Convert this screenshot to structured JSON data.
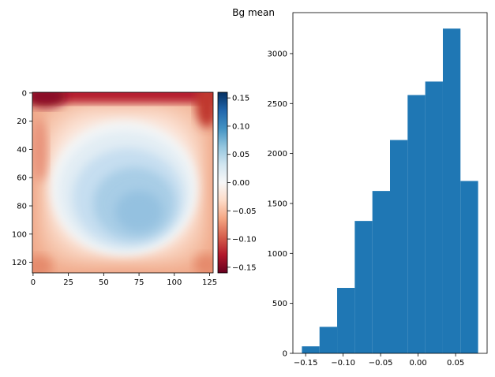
{
  "chart_data": [
    {
      "type": "heatmap",
      "title": "",
      "image": {
        "rows": 128,
        "cols": 128,
        "xticks": [
          0,
          25,
          50,
          75,
          100,
          125
        ],
        "yticks": [
          0,
          20,
          40,
          60,
          80,
          100,
          120
        ],
        "vmin": -0.16,
        "vmax": 0.16,
        "colormap": "RdBu",
        "colormap_stops": [
          "#67001f",
          "#b2182b",
          "#d6604d",
          "#f4a582",
          "#fddbc7",
          "#f7f7f7",
          "#d1e5f0",
          "#92c5de",
          "#4393c3",
          "#2166ac",
          "#053061"
        ]
      },
      "colorbar": {
        "ticks": [
          0.15,
          0.1,
          0.05,
          0.0,
          -0.05,
          -0.1,
          -0.15
        ],
        "tick_labels": [
          "0.15",
          "0.10",
          "0.05",
          "0.00",
          "−0.05",
          "−0.10",
          "−0.15"
        ]
      }
    },
    {
      "type": "bar",
      "title": "Bg mean",
      "xlabel": "",
      "ylabel": "",
      "bin_edges": [
        -0.155,
        -0.1315,
        -0.108,
        -0.0845,
        -0.061,
        -0.0375,
        -0.014,
        0.0095,
        0.033,
        0.0565,
        0.08
      ],
      "values": [
        70,
        265,
        655,
        1325,
        1625,
        2135,
        2585,
        2720,
        3250,
        1725
      ],
      "xlim": [
        -0.167,
        0.092
      ],
      "ylim": [
        0,
        3410
      ],
      "xticks": [
        -0.15,
        -0.1,
        -0.05,
        0.0,
        0.05
      ],
      "xtick_labels": [
        "−0.15",
        "−0.10",
        "−0.05",
        "0.00",
        "0.05"
      ],
      "yticks": [
        0,
        500,
        1000,
        1500,
        2000,
        2500,
        3000
      ],
      "ytick_labels": [
        "0",
        "500",
        "1000",
        "1500",
        "2000",
        "2500",
        "3000"
      ],
      "bar_color": "#1f77b4"
    }
  ]
}
